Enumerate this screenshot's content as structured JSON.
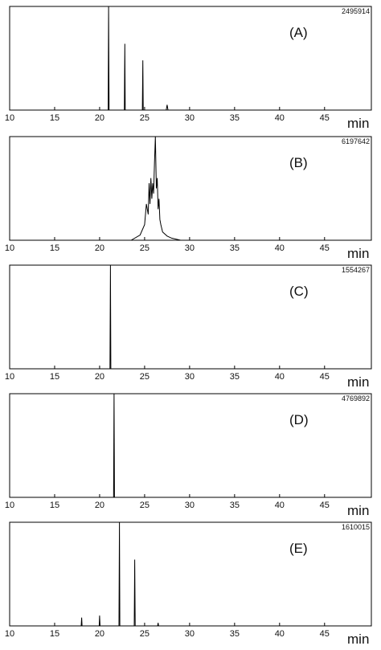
{
  "chart_data": [
    {
      "type": "line",
      "label": "(A)",
      "x_label": "min",
      "color": "#000000",
      "x": [
        10,
        20.95,
        21.0,
        21.05,
        22.75,
        22.8,
        22.85,
        24.75,
        24.8,
        24.85,
        27.4,
        27.5,
        27.6,
        50
      ],
      "values": [
        0,
        0,
        2495914,
        0,
        0,
        1597000,
        0,
        0,
        1198000,
        0,
        0,
        125000,
        0,
        0
      ],
      "xlim": [
        10,
        50.2
      ],
      "ylim": [
        0,
        2495914
      ],
      "xticks": [
        10,
        15,
        20,
        25,
        30,
        35,
        40,
        45
      ]
    },
    {
      "type": "line",
      "label": "(B)",
      "x_label": "min",
      "color": "#000000",
      "x": [
        10,
        23.5,
        24.5,
        25.0,
        25.2,
        25.4,
        25.5,
        25.6,
        25.7,
        25.8,
        25.9,
        26.0,
        26.1,
        26.2,
        26.3,
        26.4,
        26.5,
        26.6,
        26.7,
        26.8,
        27.0,
        27.5,
        28,
        29,
        50
      ],
      "values": [
        0,
        0,
        310000,
        930000,
        2169000,
        1549000,
        3409000,
        2169000,
        3719000,
        2479000,
        3409000,
        2789000,
        4648000,
        6197642,
        3099000,
        3719000,
        1859000,
        2479000,
        1240000,
        930000,
        496000,
        248000,
        124000,
        0,
        0
      ],
      "xlim": [
        10,
        50.2
      ],
      "ylim": [
        0,
        6197642
      ],
      "xticks": [
        10,
        15,
        20,
        25,
        30,
        35,
        40,
        45
      ]
    },
    {
      "type": "line",
      "label": "(C)",
      "x_label": "min",
      "color": "#000000",
      "x": [
        10,
        21.15,
        21.2,
        21.25,
        50
      ],
      "values": [
        0,
        0,
        1554267,
        0,
        0
      ],
      "xlim": [
        10,
        50.2
      ],
      "ylim": [
        0,
        1554267
      ],
      "xticks": [
        10,
        15,
        20,
        25,
        30,
        35,
        40,
        45
      ]
    },
    {
      "type": "line",
      "label": "(D)",
      "x_label": "min",
      "color": "#000000",
      "x": [
        10,
        21.55,
        21.6,
        21.65,
        50
      ],
      "values": [
        0,
        0,
        4769892,
        0,
        0
      ],
      "xlim": [
        10,
        50.2
      ],
      "ylim": [
        0,
        4769892
      ],
      "xticks": [
        10,
        15,
        20,
        25,
        30,
        35,
        40,
        45
      ]
    },
    {
      "type": "line",
      "label": "(E)",
      "x_label": "min",
      "color": "#000000",
      "x": [
        10,
        17.95,
        18.0,
        18.05,
        19.95,
        20.0,
        20.05,
        22.15,
        22.2,
        22.25,
        23.85,
        23.9,
        23.95,
        26.45,
        26.5,
        26.55,
        50
      ],
      "values": [
        0,
        0,
        129000,
        0,
        0,
        161000,
        0,
        0,
        1610015,
        0,
        0,
        1030000,
        0,
        0,
        48000,
        0,
        0
      ],
      "xlim": [
        10,
        50.2
      ],
      "ylim": [
        0,
        1610015
      ],
      "xticks": [
        10,
        15,
        20,
        25,
        30,
        35,
        40,
        45
      ]
    }
  ]
}
